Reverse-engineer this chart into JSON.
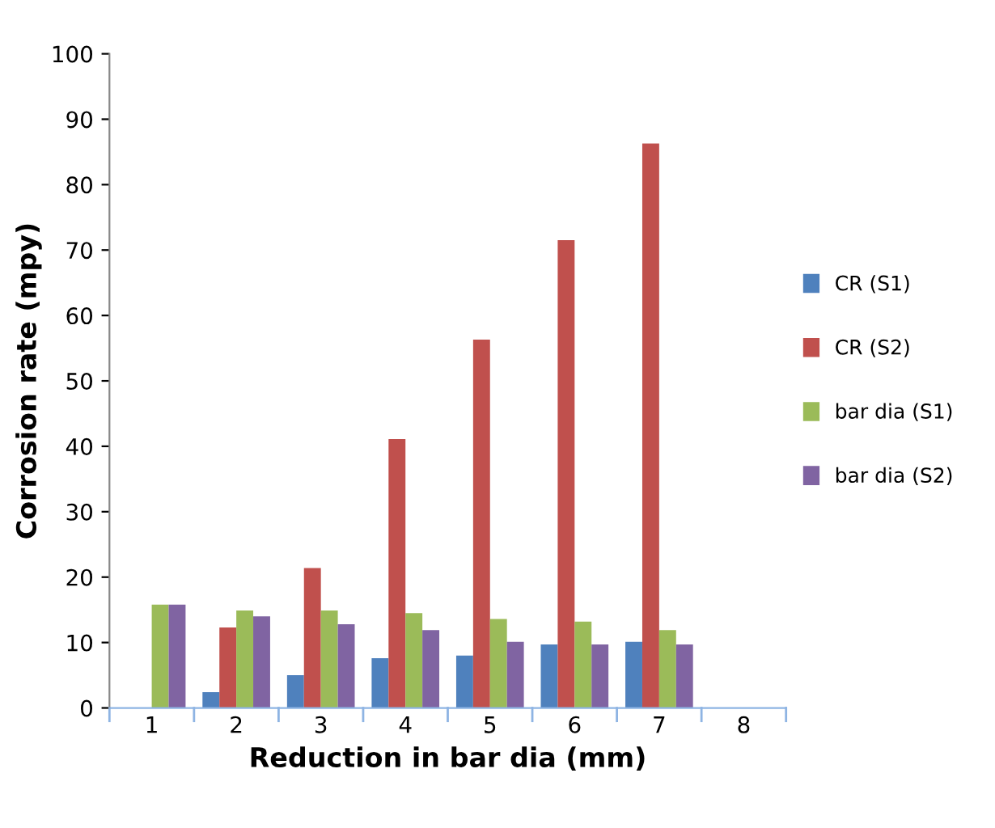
{
  "chart_data": {
    "type": "bar",
    "xlabel": "Reduction in bar dia (mm)",
    "ylabel": "Corrosion rate (mpy)",
    "categories": [
      "1",
      "2",
      "3",
      "4",
      "5",
      "6",
      "7",
      "8"
    ],
    "series": [
      {
        "name": "CR (S1)",
        "color": "#4f81bd",
        "values": [
          null,
          2.4,
          5.0,
          7.6,
          8.0,
          9.7,
          10.1,
          null
        ]
      },
      {
        "name": "CR (S2)",
        "color": "#c0504d",
        "values": [
          null,
          12.3,
          21.4,
          41.1,
          56.3,
          71.5,
          86.3,
          null
        ]
      },
      {
        "name": "bar dia (S1)",
        "color": "#9bbb59",
        "values": [
          15.8,
          14.9,
          14.9,
          14.5,
          13.6,
          13.2,
          11.9,
          null
        ]
      },
      {
        "name": "bar dia (S2)",
        "color": "#8064a2",
        "values": [
          15.8,
          14.0,
          12.8,
          11.9,
          10.1,
          9.7,
          9.7,
          null
        ]
      }
    ],
    "ylim": [
      0,
      100
    ],
    "yticks": [
      0,
      10,
      20,
      30,
      40,
      50,
      60,
      70,
      80,
      90,
      100
    ],
    "grid": false,
    "legend": "right"
  }
}
